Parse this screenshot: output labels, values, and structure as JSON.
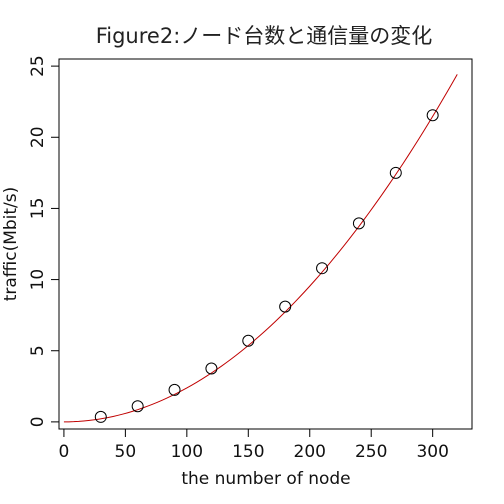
{
  "chart_data": {
    "type": "scatter",
    "title": "Figure2:ノード台数と通信量の変化",
    "xlabel": "the number of node",
    "ylabel": "traffic(Mbit/s)",
    "xlim": [
      -4,
      332
    ],
    "ylim": [
      -0.5,
      25.5
    ],
    "xticks": [
      0,
      50,
      100,
      150,
      200,
      250,
      300
    ],
    "yticks": [
      0,
      5,
      10,
      15,
      20,
      25
    ],
    "grid": false,
    "points": {
      "x": [
        30,
        60,
        90,
        120,
        150,
        180,
        210,
        240,
        270,
        300
      ],
      "y": [
        0.35,
        1.1,
        2.25,
        3.75,
        5.7,
        8.1,
        10.8,
        13.95,
        17.5,
        21.55
      ]
    },
    "fit_curve": {
      "x_range": [
        0,
        320
      ],
      "exponent": 2,
      "coefficient": 0.0002385
    },
    "colors": {
      "fit_curve": "#c00000",
      "points": "#000000"
    }
  }
}
